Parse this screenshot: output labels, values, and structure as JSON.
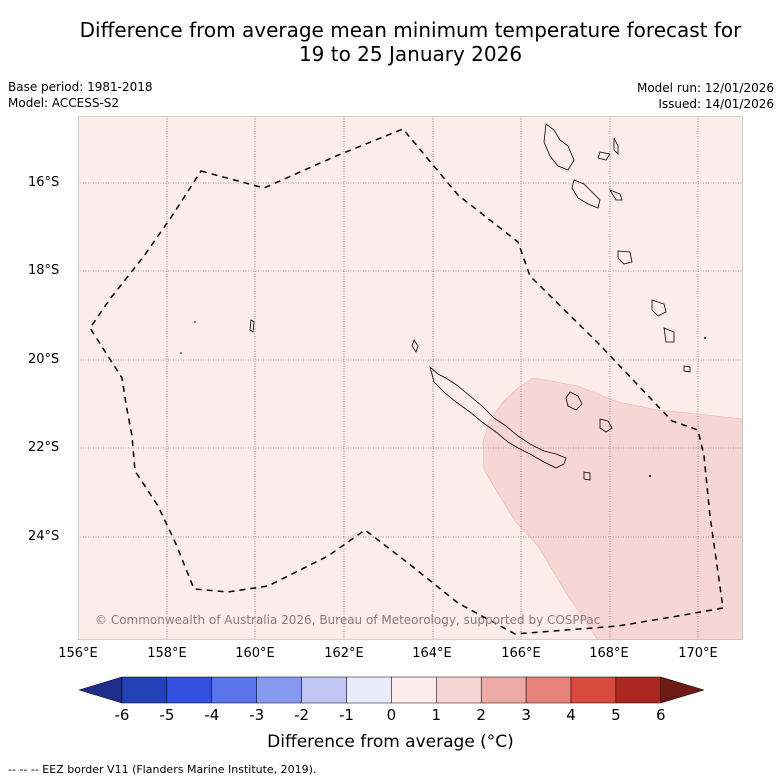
{
  "title_line1": "Difference from average mean minimum temperature forecast for",
  "title_line2": "19 to 25 January 2026",
  "base_period": "Base period: 1981-2018",
  "model": "Model: ACCESS-S2",
  "model_run": "Model run: 12/01/2026",
  "issued": "Issued: 14/01/2026",
  "lat_labels": [
    "16°S",
    "18°S",
    "20°S",
    "22°S",
    "24°S"
  ],
  "lon_labels": [
    "156°E",
    "158°E",
    "160°E",
    "162°E",
    "164°E",
    "166°E",
    "168°E",
    "170°E"
  ],
  "copyright": "© Commonwealth of Australia 2026, Bureau of Meteorology, supported by COSPPac",
  "colorbar": {
    "title": "Difference from average (°C)",
    "tick_labels": [
      "-6",
      "-5",
      "-4",
      "-3",
      "-2",
      "-1",
      "0",
      "1",
      "2",
      "3",
      "4",
      "5",
      "6"
    ],
    "colors": [
      "#1f2e8c",
      "#2442b8",
      "#3250e0",
      "#5a74ea",
      "#8599ee",
      "#bfc6f4",
      "#e8ebfa",
      "#fdeceb",
      "#f6d6d2",
      "#eeaaa4",
      "#e6827a",
      "#d94a3e",
      "#ab2822",
      "#6e1a14"
    ]
  },
  "map_colors": {
    "anomaly_0_1": "#fcecea",
    "anomaly_1_2": "#f6d7d3"
  },
  "footnote": "-- -- -- EEZ border V11 (Flanders Marine Institute, 2019)."
}
